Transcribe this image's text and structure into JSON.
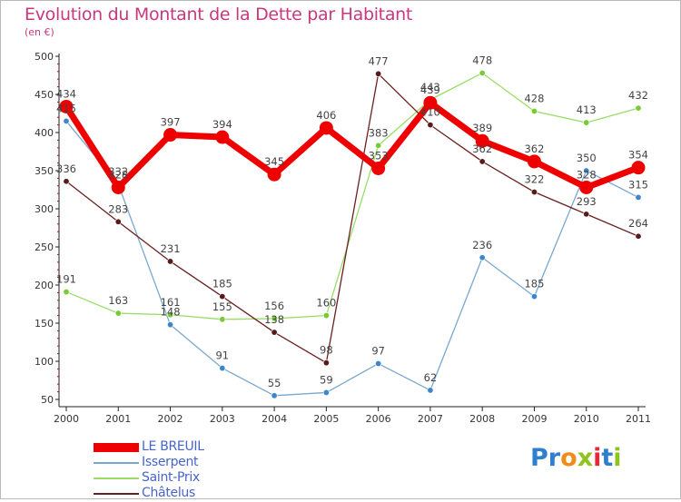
{
  "title": "Evolution du Montant de la Dette par Habitant",
  "subtitle": "(en €)",
  "chart_data": {
    "type": "line",
    "title": "Evolution du Montant de la Dette par Habitant",
    "subtitle": "(en €)",
    "xlabel": "",
    "ylabel": "",
    "categories": [
      "2000",
      "2001",
      "2002",
      "2003",
      "2004",
      "2005",
      "2006",
      "2007",
      "2008",
      "2009",
      "2010",
      "2011"
    ],
    "y_ticks": [
      50,
      100,
      150,
      200,
      250,
      300,
      350,
      400,
      450,
      500
    ],
    "ylim": [
      50,
      500
    ],
    "grid": false,
    "legend_position": "bottom-left",
    "series": [
      {
        "name": "LE BREUIL",
        "color": "#ee0000",
        "values": [
          434,
          328,
          397,
          394,
          345,
          406,
          353,
          439,
          389,
          362,
          328,
          354
        ]
      },
      {
        "name": "Isserpent",
        "color": "#7aa7cf",
        "values": [
          415,
          332,
          148,
          91,
          55,
          59,
          97,
          62,
          236,
          185,
          350,
          315
        ]
      },
      {
        "name": "Saint-Prix",
        "color": "#99dd66",
        "values": [
          191,
          163,
          161,
          155,
          156,
          160,
          383,
          443,
          478,
          428,
          413,
          432
        ]
      },
      {
        "name": "Châtelus",
        "color": "#6b2020",
        "values": [
          336,
          283,
          231,
          185,
          138,
          98,
          477,
          410,
          362,
          322,
          293,
          264
        ]
      }
    ]
  },
  "brand": {
    "letters": [
      "P",
      "r",
      "o",
      "x",
      "i",
      "t",
      "i"
    ],
    "colors": [
      "#2f7fd0",
      "#2f7fd0",
      "#f08c1c",
      "#8fc31f",
      "#e6263a",
      "#2f7fd0",
      "#8fc31f"
    ]
  }
}
